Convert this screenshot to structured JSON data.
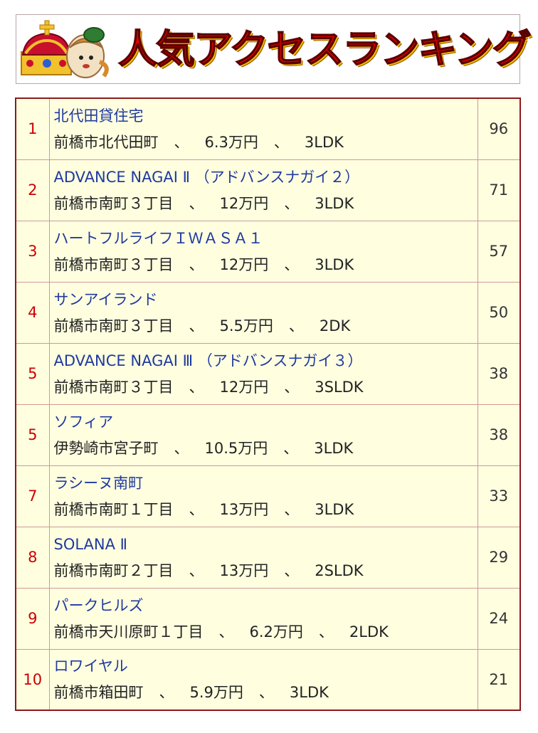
{
  "banner": {
    "title": "人気アクセスランキング",
    "mascot": "crown-mascot-icon"
  },
  "colors": {
    "title": "#e60000",
    "rank": "#cc0000",
    "name": "#1f3a9e",
    "row_bg": "#ffffe0",
    "border": "#cc9999"
  },
  "rows": [
    {
      "rank": "1",
      "name": "北代田貸住宅",
      "address": "前橋市北代田町",
      "sep1": "、",
      "price": "6.3万円",
      "sep2": "、",
      "layout": "3LDK",
      "count": "96"
    },
    {
      "rank": "2",
      "name": "ADVANCE NAGAI Ⅱ （アドバンスナガイ２）",
      "address": "前橋市南町３丁目",
      "sep1": "、",
      "price": "12万円",
      "sep2": "、",
      "layout": "3LDK",
      "count": "71"
    },
    {
      "rank": "3",
      "name": "ハートフルライフＩＷＡＳＡ１",
      "address": "前橋市南町３丁目",
      "sep1": "、",
      "price": "12万円",
      "sep2": "、",
      "layout": "3LDK",
      "count": "57"
    },
    {
      "rank": "4",
      "name": "サンアイランド",
      "address": "前橋市南町３丁目",
      "sep1": "、",
      "price": "5.5万円",
      "sep2": "、",
      "layout": "2DK",
      "count": "50"
    },
    {
      "rank": "5",
      "name": "ADVANCE NAGAI Ⅲ （アドバンスナガイ３）",
      "address": "前橋市南町３丁目",
      "sep1": "、",
      "price": "12万円",
      "sep2": "、",
      "layout": "3SLDK",
      "count": "38"
    },
    {
      "rank": "5",
      "name": "ソフィア",
      "address": "伊勢崎市宮子町",
      "sep1": "、",
      "price": "10.5万円",
      "sep2": "、",
      "layout": "3LDK",
      "count": "38"
    },
    {
      "rank": "7",
      "name": "ラシーヌ南町",
      "address": "前橋市南町１丁目",
      "sep1": "、",
      "price": "13万円",
      "sep2": "、",
      "layout": "3LDK",
      "count": "33"
    },
    {
      "rank": "8",
      "name": "SOLANA Ⅱ",
      "address": "前橋市南町２丁目",
      "sep1": "、",
      "price": "13万円",
      "sep2": "、",
      "layout": "2SLDK",
      "count": "29"
    },
    {
      "rank": "9",
      "name": "パークヒルズ",
      "address": "前橋市天川原町１丁目",
      "sep1": "、",
      "price": "6.2万円",
      "sep2": "、",
      "layout": "2LDK",
      "count": "24"
    },
    {
      "rank": "10",
      "name": "ロワイヤル",
      "address": "前橋市箱田町",
      "sep1": "、",
      "price": "5.9万円",
      "sep2": "、",
      "layout": "3LDK",
      "count": "21"
    }
  ]
}
